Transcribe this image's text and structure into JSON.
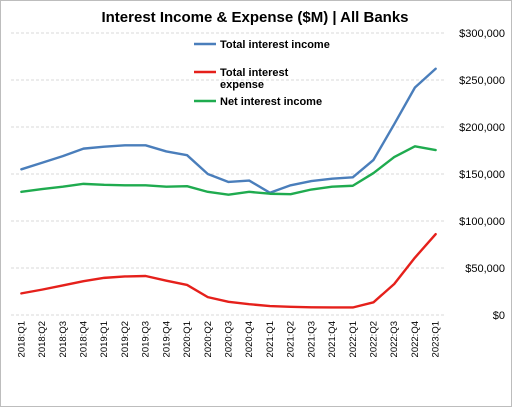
{
  "chart_data": {
    "type": "line",
    "title": "Interest Income & Expense ($M) | All Banks",
    "xlabel": "",
    "ylabel": "",
    "categories": [
      "2018:Q1",
      "2018:Q2",
      "2018:Q3",
      "2018:Q4",
      "2019:Q1",
      "2019:Q2",
      "2019:Q3",
      "2019:Q4",
      "2020:Q1",
      "2020:Q2",
      "2020:Q3",
      "2020:Q4",
      "2021:Q1",
      "2021:Q2",
      "2021:Q3",
      "2021:Q4",
      "2022:Q1",
      "2022:Q2",
      "2022:Q3",
      "2022:Q4",
      "2023:Q1"
    ],
    "ylim": [
      0,
      300000
    ],
    "yticks": [
      0,
      50000,
      100000,
      150000,
      200000,
      250000,
      300000
    ],
    "ytick_labels": [
      "$0",
      "$50,000",
      "$100,000",
      "$150,000",
      "$200,000",
      "$250,000",
      "$300,000"
    ],
    "grid": true,
    "legend_position": "top-center",
    "series": [
      {
        "name": "Total interest income",
        "color": "#4a7ebb",
        "values": [
          155000,
          162000,
          169000,
          177000,
          179000,
          180500,
          180500,
          174000,
          170000,
          150000,
          141500,
          143000,
          130000,
          138000,
          142500,
          145000,
          146500,
          165000,
          203000,
          242000,
          262000
        ]
      },
      {
        "name": "Total interest expense",
        "legend_lines": [
          "Total interest",
          "expense"
        ],
        "color": "#e5201b",
        "values": [
          23000,
          27000,
          31500,
          36000,
          39500,
          41000,
          41500,
          36500,
          32000,
          19000,
          14000,
          11500,
          9500,
          8700,
          8200,
          8000,
          8000,
          13500,
          33000,
          61000,
          86000
        ]
      },
      {
        "name": "Net interest income",
        "color": "#1fab4f",
        "values": [
          131000,
          134000,
          136500,
          139500,
          138500,
          138000,
          138000,
          136500,
          137000,
          131000,
          128000,
          131000,
          129000,
          128500,
          133500,
          136500,
          137500,
          151000,
          168000,
          179500,
          175500
        ]
      }
    ]
  }
}
